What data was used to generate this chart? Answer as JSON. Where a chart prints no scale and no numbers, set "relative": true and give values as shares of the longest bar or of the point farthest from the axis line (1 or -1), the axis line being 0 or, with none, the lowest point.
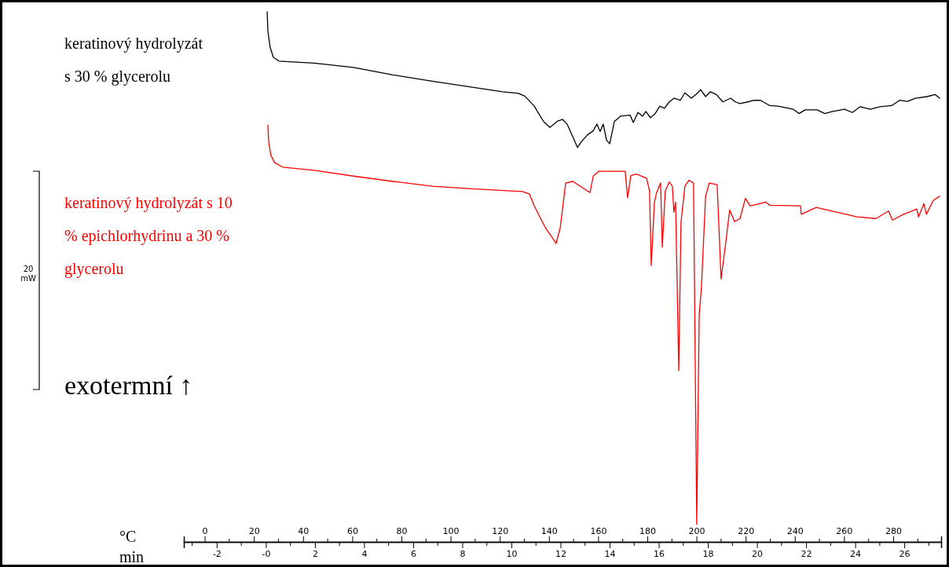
{
  "chart_data": {
    "type": "line",
    "relative": true,
    "xlabel": "°C",
    "x2label": "min",
    "xlim": [
      -8.5,
      299.5
    ],
    "x2lim": [
      -3.34,
      27.5
    ],
    "xticks": [
      0,
      20,
      40,
      60,
      80,
      100,
      120,
      140,
      160,
      180,
      200,
      220,
      240,
      260,
      280
    ],
    "x2ticks": [
      -2,
      {
        "value": 0,
        "label": "-0"
      },
      2,
      4,
      6,
      8,
      10,
      12,
      14,
      16,
      18,
      20,
      22,
      24,
      26
    ],
    "annotations": [
      "20 mW",
      "exotermní ↑"
    ],
    "series": [
      {
        "name": "keratinový hydrolyzát s 30 % glycerolu",
        "color": "#000000",
        "x": [
          25.4,
          25.7,
          26.6,
          27.9,
          30.2,
          44.5,
          60.5,
          76.5,
          92.5,
          108.4,
          121.2,
          127.6,
          130.2,
          134.0,
          137.8,
          140.4,
          143.6,
          145.5,
          147.4,
          149.3,
          151.6,
          153.2,
          155.7,
          157.9,
          159.5,
          160.8,
          162.1,
          163.4,
          164.7,
          166.6,
          169.1,
          173.0,
          174.3,
          176.2,
          178.1,
          179.4,
          181.3,
          183.2,
          185.1,
          187.0,
          188.9,
          190.9,
          193.4,
          195.3,
          197.9,
          199.8,
          201.7,
          203.7,
          205.6,
          208.1,
          210.7,
          213.9,
          215.8,
          217.7,
          220.9,
          223.4,
          226.0,
          229.8,
          233.1,
          236.3,
          239.4,
          241.7,
          244.2,
          249.0,
          252.2,
          255.4,
          260.2,
          263.4,
          266.6,
          270.7,
          274.6,
          279.4,
          282.6,
          285.8,
          289.0,
          293.8,
          297.0,
          298.9
        ],
        "values": [
          1.0,
          0.963,
          0.933,
          0.914,
          0.907,
          0.903,
          0.895,
          0.881,
          0.869,
          0.858,
          0.849,
          0.846,
          0.841,
          0.822,
          0.793,
          0.782,
          0.794,
          0.797,
          0.788,
          0.768,
          0.744,
          0.755,
          0.768,
          0.775,
          0.788,
          0.774,
          0.788,
          0.758,
          0.751,
          0.793,
          0.803,
          0.805,
          0.791,
          0.81,
          0.803,
          0.812,
          0.8,
          0.808,
          0.822,
          0.818,
          0.83,
          0.837,
          0.833,
          0.847,
          0.837,
          0.844,
          0.853,
          0.84,
          0.849,
          0.844,
          0.83,
          0.837,
          0.83,
          0.827,
          0.83,
          0.833,
          0.833,
          0.823,
          0.822,
          0.819,
          0.816,
          0.808,
          0.815,
          0.815,
          0.808,
          0.812,
          0.816,
          0.81,
          0.821,
          0.816,
          0.821,
          0.823,
          0.833,
          0.831,
          0.837,
          0.84,
          0.844,
          0.837
        ]
      },
      {
        "name": "keratinový hydrolyzát s 10 % epichlorhydrinu a 30 % glycerolu",
        "color": "#ff0000",
        "x": [
          25.7,
          26.0,
          26.9,
          28.5,
          31.7,
          44.5,
          60.5,
          76.5,
          92.5,
          108.4,
          129.2,
          132.1,
          134.0,
          138.5,
          142.9,
          144.6,
          146.8,
          149.7,
          156.7,
          158.0,
          160.2,
          171.0,
          172.0,
          173.3,
          175.5,
          179.7,
          180.9,
          181.6,
          182.9,
          183.8,
          185.4,
          186.1,
          187.3,
          188.9,
          190.2,
          190.8,
          191.5,
          192.8,
          193.7,
          195.3,
          196.9,
          198.8,
          200.1,
          201.1,
          202.0,
          203.7,
          205.2,
          208.4,
          210.0,
          211.6,
          213.5,
          215.5,
          217.7,
          219.9,
          221.8,
          225.7,
          228.2,
          229.8,
          242.3,
          242.6,
          248.7,
          265.3,
          273.0,
          278.1,
          279.7,
          284.2,
          289.6,
          290.3,
          292.5,
          293.5,
          296.3,
          298.9
        ],
        "values": [
          0.786,
          0.755,
          0.729,
          0.715,
          0.707,
          0.701,
          0.69,
          0.68,
          0.671,
          0.666,
          0.661,
          0.656,
          0.634,
          0.593,
          0.563,
          0.593,
          0.677,
          0.68,
          0.659,
          0.69,
          0.699,
          0.699,
          0.649,
          0.691,
          0.694,
          0.686,
          0.662,
          0.521,
          0.641,
          0.659,
          0.677,
          0.556,
          0.662,
          0.679,
          0.671,
          0.622,
          0.641,
          0.323,
          0.603,
          0.671,
          0.682,
          0.677,
          0.033,
          0.429,
          0.479,
          0.652,
          0.677,
          0.674,
          0.496,
          0.553,
          0.626,
          0.604,
          0.61,
          0.648,
          0.634,
          0.638,
          0.641,
          0.635,
          0.634,
          0.618,
          0.631,
          0.613,
          0.61,
          0.624,
          0.607,
          0.618,
          0.628,
          0.613,
          0.638,
          0.618,
          0.644,
          0.652
        ]
      }
    ]
  }
}
